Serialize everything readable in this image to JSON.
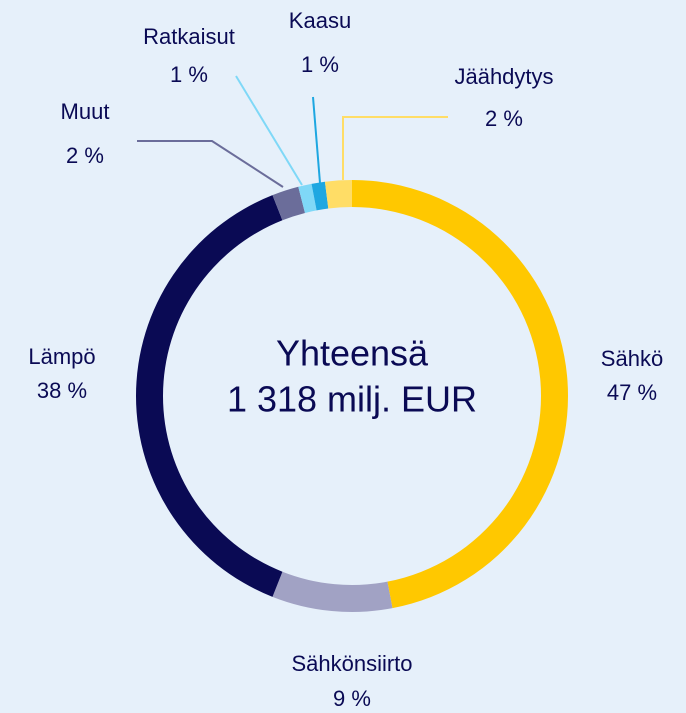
{
  "chart_data": {
    "type": "donut",
    "center_labels": [
      "Yhteensä",
      "1 318 milj. EUR"
    ],
    "categories": [
      "Sähkö",
      "Sähkönsiirto",
      "Lämpö",
      "Muut",
      "Ratkaisut",
      "Kaasu",
      "Jäähdytys"
    ],
    "values": [
      47,
      9,
      38,
      2,
      1,
      1,
      2
    ],
    "value_labels": [
      "47 %",
      "9 %",
      "38 %",
      "2 %",
      "1 %",
      "1 %",
      "2 %"
    ],
    "colors": [
      "#ffc800",
      "#a1a2c4",
      "#0a0a54",
      "#6b6d9a",
      "#7fd8f7",
      "#1ea7e1",
      "#ffdd66"
    ]
  }
}
